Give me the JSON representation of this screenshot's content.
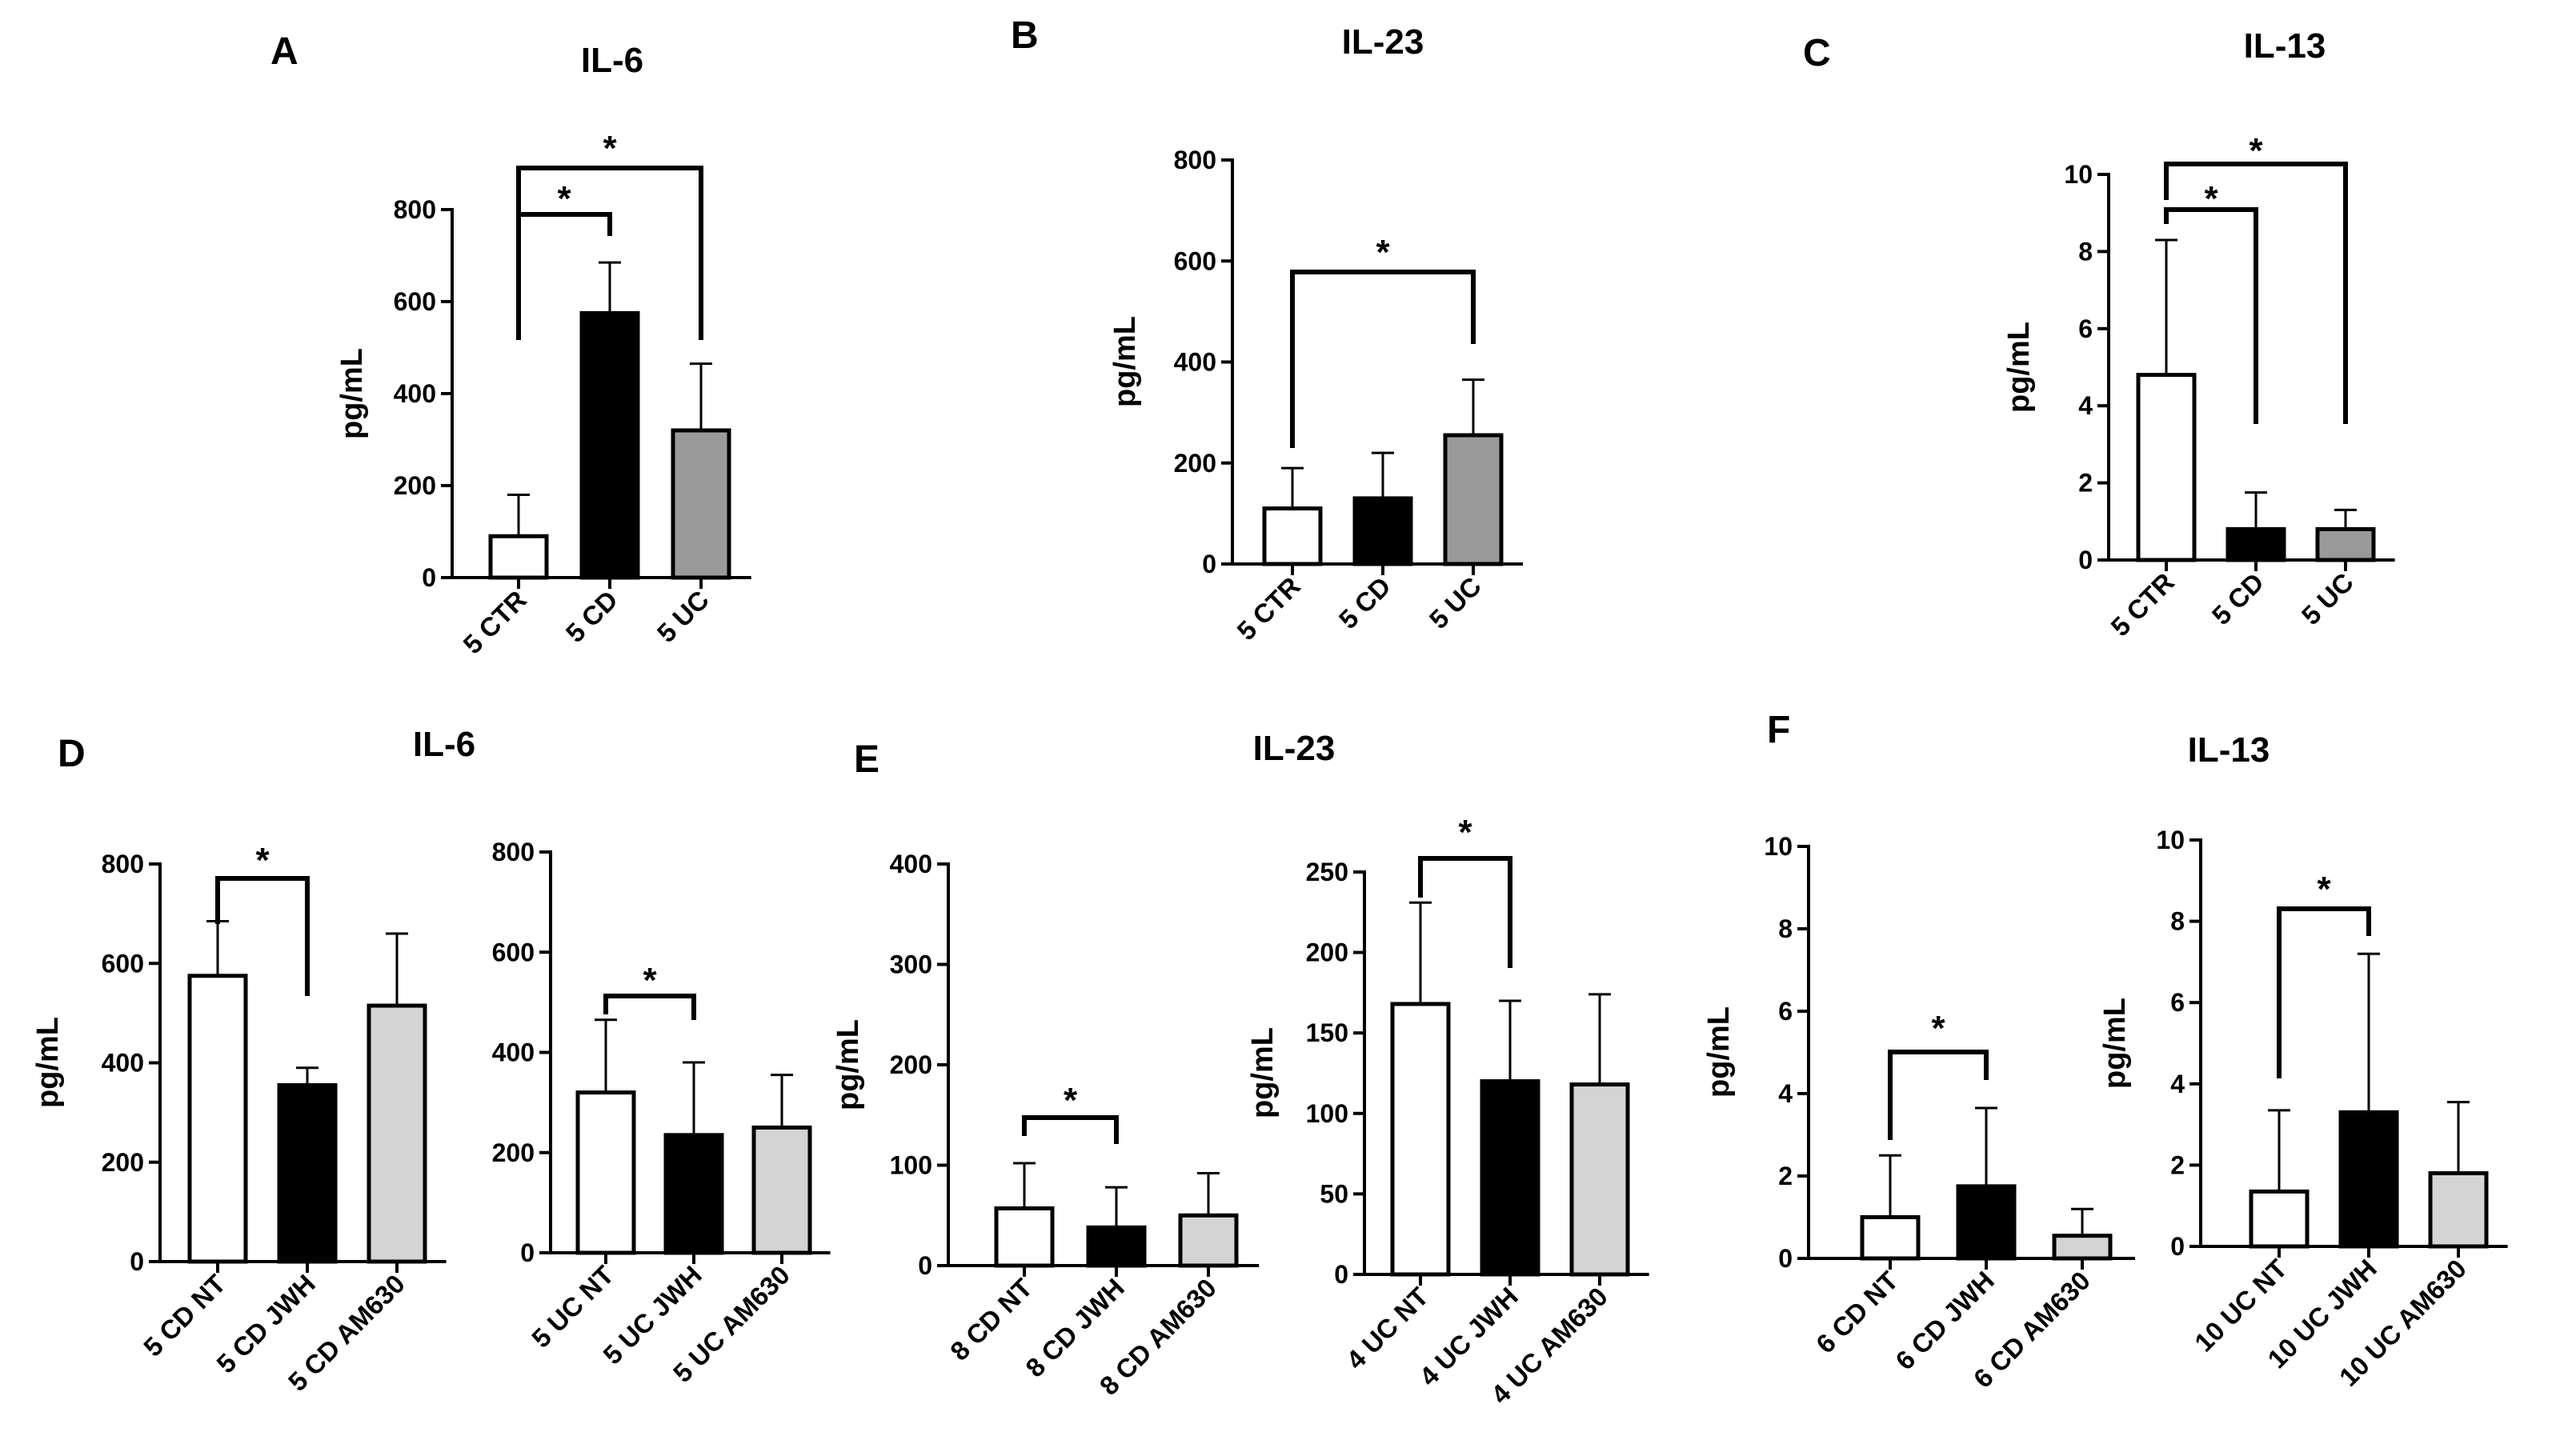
{
  "panel_labels": [
    "A",
    "B",
    "C",
    "D",
    "E",
    "F"
  ],
  "panel_titles": {
    "A": "IL-6",
    "B": "IL-23",
    "C": "IL-13",
    "D": "IL-6",
    "E": "IL-23",
    "F": "IL-13"
  },
  "colors": {
    "white": "#ffffff",
    "black": "#000000",
    "dark_gray": "#9a9a9a",
    "light_gray": "#d4d4d4"
  },
  "chart_data": [
    {
      "id": "A",
      "type": "bar",
      "title": "IL-6",
      "ylabel": "pg/mL",
      "ylim": [
        0,
        800
      ],
      "yticks": [
        "0",
        "200",
        "400",
        "600",
        "800"
      ],
      "categories": [
        "5 CTR",
        "5 CD",
        "5 UC"
      ],
      "values": [
        90,
        575,
        320
      ],
      "errors": [
        90,
        110,
        145
      ],
      "fills": [
        "white",
        "black",
        "dark_gray"
      ],
      "significance": [
        {
          "from": 0,
          "to": 1,
          "label": "*"
        },
        {
          "from": 0,
          "to": 2,
          "label": "*"
        }
      ]
    },
    {
      "id": "B",
      "type": "bar",
      "title": "IL-23",
      "ylabel": "pg/mL",
      "ylim": [
        0,
        800
      ],
      "yticks": [
        "0",
        "200",
        "400",
        "600",
        "800"
      ],
      "categories": [
        "5 CTR",
        "5 CD",
        "5 UC"
      ],
      "values": [
        110,
        130,
        255
      ],
      "errors": [
        80,
        90,
        110
      ],
      "fills": [
        "white",
        "black",
        "dark_gray"
      ],
      "significance": [
        {
          "from": 0,
          "to": 2,
          "label": "*"
        }
      ]
    },
    {
      "id": "C",
      "type": "bar",
      "title": "IL-13",
      "ylabel": "pg/mL",
      "ylim": [
        0,
        10
      ],
      "yticks": [
        "0",
        "2",
        "4",
        "6",
        "8",
        "10"
      ],
      "categories": [
        "5 CTR",
        "5 CD",
        "5 UC"
      ],
      "values": [
        4.8,
        0.8,
        0.8
      ],
      "errors": [
        3.5,
        0.95,
        0.5
      ],
      "fills": [
        "white",
        "black",
        "dark_gray"
      ],
      "significance": [
        {
          "from": 0,
          "to": 1,
          "label": "*"
        },
        {
          "from": 0,
          "to": 2,
          "label": "*"
        }
      ]
    },
    {
      "id": "D1",
      "type": "bar",
      "title": "",
      "ylabel": "pg/mL",
      "ylim": [
        0,
        800
      ],
      "yticks": [
        "0",
        "200",
        "400",
        "600",
        "800"
      ],
      "categories": [
        "5 CD NT",
        "5 CD JWH",
        "5 CD AM630"
      ],
      "values": [
        575,
        355,
        515
      ],
      "errors": [
        110,
        35,
        145
      ],
      "fills": [
        "white",
        "black",
        "light_gray"
      ],
      "significance": [
        {
          "from": 0,
          "to": 1,
          "label": "*"
        }
      ]
    },
    {
      "id": "D2",
      "type": "bar",
      "title": "",
      "ylabel": "",
      "ylim": [
        0,
        800
      ],
      "yticks": [
        "0",
        "200",
        "400",
        "600",
        "800"
      ],
      "categories": [
        "5 UC NT",
        "5 UC JWH",
        "5 UC AM630"
      ],
      "values": [
        320,
        235,
        250
      ],
      "errors": [
        145,
        145,
        105
      ],
      "fills": [
        "white",
        "black",
        "light_gray"
      ],
      "significance": [
        {
          "from": 0,
          "to": 1,
          "label": "*"
        }
      ]
    },
    {
      "id": "E1",
      "type": "bar",
      "title": "",
      "ylabel": "pg/mL",
      "ylim": [
        0,
        400
      ],
      "yticks": [
        "0",
        "100",
        "200",
        "300",
        "400"
      ],
      "categories": [
        "8 CD NT",
        "8 CD JWH",
        "8 CD AM630"
      ],
      "values": [
        57,
        38,
        50
      ],
      "errors": [
        45,
        40,
        42
      ],
      "fills": [
        "white",
        "black",
        "light_gray"
      ],
      "significance": [
        {
          "from": 0,
          "to": 1,
          "label": "*"
        }
      ]
    },
    {
      "id": "E2",
      "type": "bar",
      "title": "",
      "ylabel": "pg/mL",
      "ylim": [
        0,
        250
      ],
      "yticks": [
        "0",
        "50",
        "100",
        "150",
        "200",
        "250"
      ],
      "categories": [
        "4 UC NT",
        "4 UC JWH",
        "4 UC AM630"
      ],
      "values": [
        168,
        120,
        118
      ],
      "errors": [
        63,
        50,
        56
      ],
      "fills": [
        "white",
        "black",
        "light_gray"
      ],
      "significance": [
        {
          "from": 0,
          "to": 1,
          "label": "*"
        }
      ]
    },
    {
      "id": "F1",
      "type": "bar",
      "title": "",
      "ylabel": "pg/mL",
      "ylim": [
        0,
        10
      ],
      "yticks": [
        "0",
        "2",
        "4",
        "6",
        "8",
        "10"
      ],
      "categories": [
        "6 CD NT",
        "6 CD JWH",
        "6 CD AM630"
      ],
      "values": [
        1.0,
        1.75,
        0.55
      ],
      "errors": [
        1.5,
        1.9,
        0.65
      ],
      "fills": [
        "white",
        "black",
        "light_gray"
      ],
      "significance": [
        {
          "from": 0,
          "to": 1,
          "label": "*"
        }
      ]
    },
    {
      "id": "F2",
      "type": "bar",
      "title": "",
      "ylabel": "pg/mL",
      "ylim": [
        0,
        10
      ],
      "yticks": [
        "0",
        "2",
        "4",
        "6",
        "8",
        "10"
      ],
      "categories": [
        "10 UC NT",
        "10 UC JWH",
        "10 UC AM630"
      ],
      "values": [
        1.35,
        3.3,
        1.8
      ],
      "errors": [
        2.0,
        3.9,
        1.75
      ],
      "fills": [
        "white",
        "black",
        "light_gray"
      ],
      "significance": [
        {
          "from": 0,
          "to": 1,
          "label": "*"
        }
      ]
    }
  ]
}
